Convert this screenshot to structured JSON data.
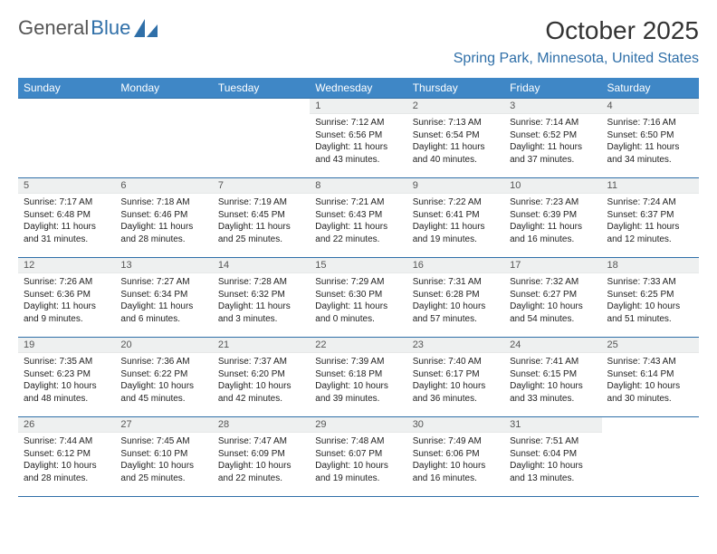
{
  "logo": {
    "text1": "General",
    "text2": "Blue"
  },
  "title": "October 2025",
  "location": "Spring Park, Minnesota, United States",
  "colors": {
    "header_bg": "#3f87c6",
    "accent": "#2f6fa8",
    "daynum_bg": "#eef0f0",
    "text": "#222222"
  },
  "weekdays": [
    "Sunday",
    "Monday",
    "Tuesday",
    "Wednesday",
    "Thursday",
    "Friday",
    "Saturday"
  ],
  "weeks": [
    [
      null,
      null,
      null,
      {
        "n": "1",
        "sr": "7:12 AM",
        "ss": "6:56 PM",
        "dl": "11 hours and 43 minutes."
      },
      {
        "n": "2",
        "sr": "7:13 AM",
        "ss": "6:54 PM",
        "dl": "11 hours and 40 minutes."
      },
      {
        "n": "3",
        "sr": "7:14 AM",
        "ss": "6:52 PM",
        "dl": "11 hours and 37 minutes."
      },
      {
        "n": "4",
        "sr": "7:16 AM",
        "ss": "6:50 PM",
        "dl": "11 hours and 34 minutes."
      }
    ],
    [
      {
        "n": "5",
        "sr": "7:17 AM",
        "ss": "6:48 PM",
        "dl": "11 hours and 31 minutes."
      },
      {
        "n": "6",
        "sr": "7:18 AM",
        "ss": "6:46 PM",
        "dl": "11 hours and 28 minutes."
      },
      {
        "n": "7",
        "sr": "7:19 AM",
        "ss": "6:45 PM",
        "dl": "11 hours and 25 minutes."
      },
      {
        "n": "8",
        "sr": "7:21 AM",
        "ss": "6:43 PM",
        "dl": "11 hours and 22 minutes."
      },
      {
        "n": "9",
        "sr": "7:22 AM",
        "ss": "6:41 PM",
        "dl": "11 hours and 19 minutes."
      },
      {
        "n": "10",
        "sr": "7:23 AM",
        "ss": "6:39 PM",
        "dl": "11 hours and 16 minutes."
      },
      {
        "n": "11",
        "sr": "7:24 AM",
        "ss": "6:37 PM",
        "dl": "11 hours and 12 minutes."
      }
    ],
    [
      {
        "n": "12",
        "sr": "7:26 AM",
        "ss": "6:36 PM",
        "dl": "11 hours and 9 minutes."
      },
      {
        "n": "13",
        "sr": "7:27 AM",
        "ss": "6:34 PM",
        "dl": "11 hours and 6 minutes."
      },
      {
        "n": "14",
        "sr": "7:28 AM",
        "ss": "6:32 PM",
        "dl": "11 hours and 3 minutes."
      },
      {
        "n": "15",
        "sr": "7:29 AM",
        "ss": "6:30 PM",
        "dl": "11 hours and 0 minutes."
      },
      {
        "n": "16",
        "sr": "7:31 AM",
        "ss": "6:28 PM",
        "dl": "10 hours and 57 minutes."
      },
      {
        "n": "17",
        "sr": "7:32 AM",
        "ss": "6:27 PM",
        "dl": "10 hours and 54 minutes."
      },
      {
        "n": "18",
        "sr": "7:33 AM",
        "ss": "6:25 PM",
        "dl": "10 hours and 51 minutes."
      }
    ],
    [
      {
        "n": "19",
        "sr": "7:35 AM",
        "ss": "6:23 PM",
        "dl": "10 hours and 48 minutes."
      },
      {
        "n": "20",
        "sr": "7:36 AM",
        "ss": "6:22 PM",
        "dl": "10 hours and 45 minutes."
      },
      {
        "n": "21",
        "sr": "7:37 AM",
        "ss": "6:20 PM",
        "dl": "10 hours and 42 minutes."
      },
      {
        "n": "22",
        "sr": "7:39 AM",
        "ss": "6:18 PM",
        "dl": "10 hours and 39 minutes."
      },
      {
        "n": "23",
        "sr": "7:40 AM",
        "ss": "6:17 PM",
        "dl": "10 hours and 36 minutes."
      },
      {
        "n": "24",
        "sr": "7:41 AM",
        "ss": "6:15 PM",
        "dl": "10 hours and 33 minutes."
      },
      {
        "n": "25",
        "sr": "7:43 AM",
        "ss": "6:14 PM",
        "dl": "10 hours and 30 minutes."
      }
    ],
    [
      {
        "n": "26",
        "sr": "7:44 AM",
        "ss": "6:12 PM",
        "dl": "10 hours and 28 minutes."
      },
      {
        "n": "27",
        "sr": "7:45 AM",
        "ss": "6:10 PM",
        "dl": "10 hours and 25 minutes."
      },
      {
        "n": "28",
        "sr": "7:47 AM",
        "ss": "6:09 PM",
        "dl": "10 hours and 22 minutes."
      },
      {
        "n": "29",
        "sr": "7:48 AM",
        "ss": "6:07 PM",
        "dl": "10 hours and 19 minutes."
      },
      {
        "n": "30",
        "sr": "7:49 AM",
        "ss": "6:06 PM",
        "dl": "10 hours and 16 minutes."
      },
      {
        "n": "31",
        "sr": "7:51 AM",
        "ss": "6:04 PM",
        "dl": "10 hours and 13 minutes."
      },
      null
    ]
  ],
  "labels": {
    "sunrise": "Sunrise: ",
    "sunset": "Sunset: ",
    "daylight": "Daylight: "
  }
}
